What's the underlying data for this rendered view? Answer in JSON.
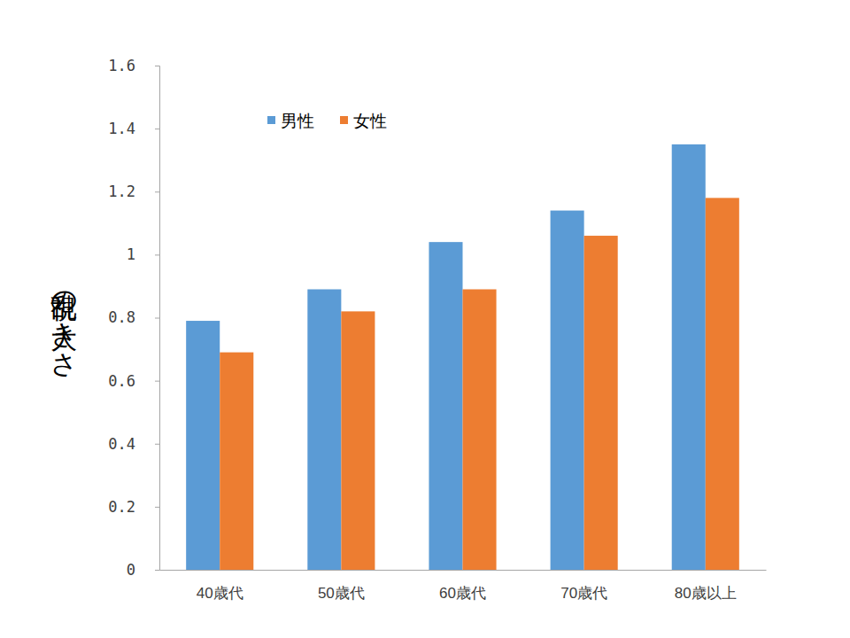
{
  "chart_data": {
    "type": "bar",
    "y_label": "乱視の大きさ",
    "categories": [
      "40歳代",
      "50歳代",
      "60歳代",
      "70歳代",
      "80歳以上"
    ],
    "series": [
      {
        "name": "男性",
        "color": "#5b9bd5",
        "values": [
          0.79,
          0.89,
          1.04,
          1.14,
          1.35
        ]
      },
      {
        "name": "女性",
        "color": "#ed7d31",
        "values": [
          0.69,
          0.82,
          0.89,
          1.06,
          1.18
        ]
      }
    ],
    "ylim": [
      0,
      1.6
    ],
    "yticks": [
      0,
      0.2,
      0.4,
      0.6,
      0.8,
      1,
      1.2,
      1.4,
      1.6
    ],
    "grid": false,
    "legend": "upper left"
  }
}
